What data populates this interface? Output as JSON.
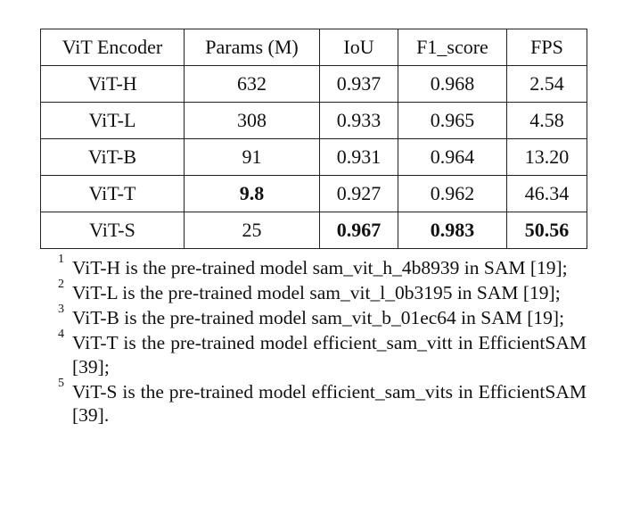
{
  "table": {
    "headers": [
      "ViT Encoder",
      "Params (M)",
      "IoU",
      "F1_score",
      "FPS"
    ],
    "rows": [
      {
        "encoder": "ViT-H",
        "params": "632",
        "iou": "0.937",
        "f1": "0.968",
        "fps": "2.54"
      },
      {
        "encoder": "ViT-L",
        "params": "308",
        "iou": "0.933",
        "f1": "0.965",
        "fps": "4.58"
      },
      {
        "encoder": "ViT-B",
        "params": "91",
        "iou": "0.931",
        "f1": "0.964",
        "fps": "13.20"
      },
      {
        "encoder": "ViT-T",
        "params": "9.8",
        "iou": "0.927",
        "f1": "0.962",
        "fps": "46.34"
      },
      {
        "encoder": "ViT-S",
        "params": "25",
        "iou": "0.967",
        "f1": "0.983",
        "fps": "50.56"
      }
    ],
    "bold_cells": [
      "ViT-T.params",
      "ViT-S.iou",
      "ViT-S.f1",
      "ViT-S.fps"
    ]
  },
  "footnotes": [
    {
      "mark": "1",
      "text": "ViT-H is the pre-trained model sam_vit_h_4b8939 in SAM [19];"
    },
    {
      "mark": "2",
      "text": "ViT-L is the pre-trained model sam_vit_l_0b3195 in SAM [19];"
    },
    {
      "mark": "3",
      "text": "ViT-B is the pre-trained model sam_vit_b_01ec64 in SAM [19];"
    },
    {
      "mark": "4",
      "text": "ViT-T is the pre-trained model efficient_sam_vitt in Effi­cientSAM [39];"
    },
    {
      "mark": "5",
      "text": "ViT-S is the pre-trained model efficient_sam_vits in Effi­cientSAM [39]."
    }
  ]
}
